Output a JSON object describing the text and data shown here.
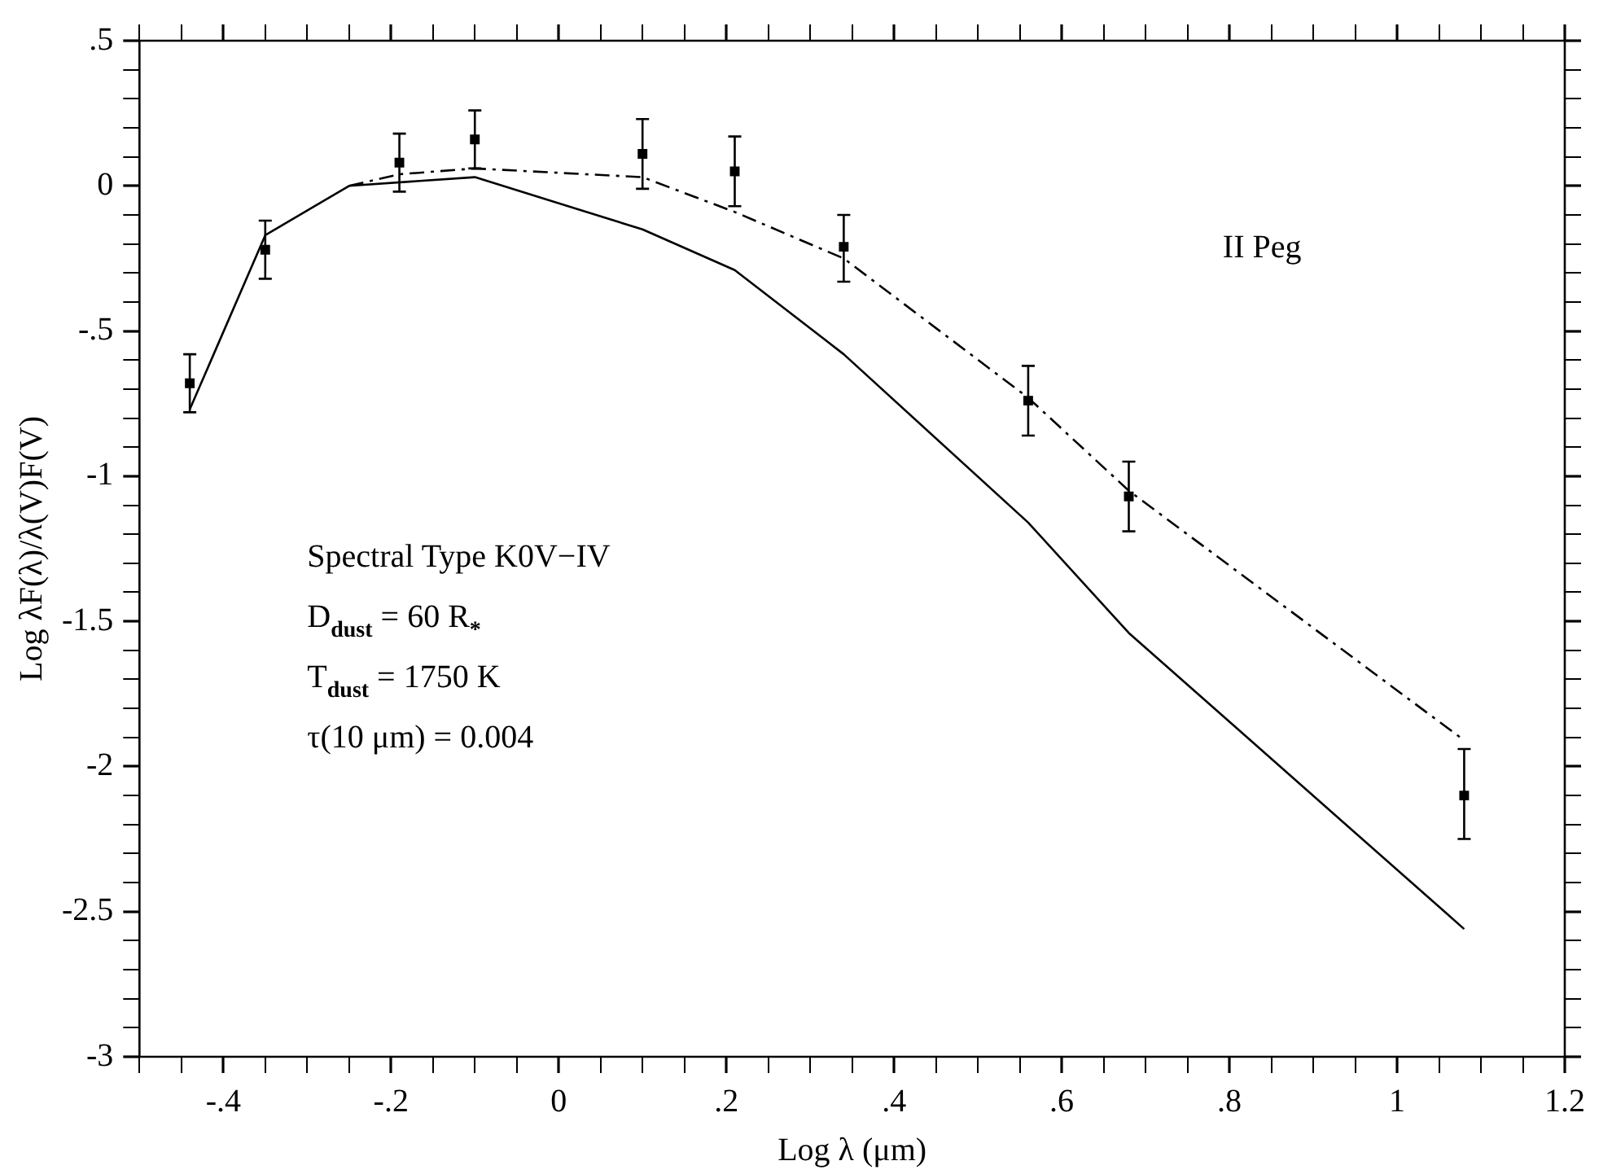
{
  "chart_data": {
    "type": "scatter",
    "xlabel": "Log λ (μm)",
    "ylabel": "Log λF(λ)/λ(V)F(V)",
    "annotations": [
      "II Peg",
      "Spectral Type K0V−IV",
      "D$_{dust}$ = 60 R$_{*}$",
      "T$_{dust}$ = 1750 K",
      "τ(10 μm) = 0.004"
    ],
    "x": [
      -0.44,
      -0.35,
      -0.19,
      -0.1,
      0.1,
      0.21,
      0.34,
      0.56,
      0.68,
      1.08
    ],
    "series": [
      {
        "color": "#000000",
        "marker": "square",
        "values": [
          -0.68,
          -0.22,
          0.08,
          0.16,
          0.11,
          0.05,
          -0.21,
          -0.74,
          -1.07,
          -2.1
        ],
        "errors": [
          [
            -0.78,
            -0.58
          ],
          [
            -0.32,
            -0.12
          ],
          [
            -0.02,
            0.18
          ],
          [
            0.06,
            0.26
          ],
          [
            -0.01,
            0.23
          ],
          [
            -0.07,
            0.17
          ],
          [
            -0.33,
            -0.1
          ],
          [
            -0.86,
            -0.62
          ],
          [
            -1.19,
            -0.95
          ],
          [
            -2.25,
            -1.94
          ]
        ]
      },
      {
        "type": "line",
        "color": "#000000",
        "line_style": "solid",
        "marker": "none",
        "x": [
          -0.44,
          -0.35,
          -0.25,
          -0.1,
          0.1,
          0.21,
          0.34,
          0.56,
          0.68,
          1.08
        ],
        "values": [
          -0.77,
          -0.17,
          0,
          0.03,
          -0.15,
          -0.29,
          -0.58,
          -1.16,
          -1.54,
          -2.56
        ]
      },
      {
        "type": "line",
        "color": "#000000",
        "line_style": "dashed",
        "marker": "none",
        "x": [
          -0.25,
          -0.19,
          -0.1,
          0.1,
          0.21,
          0.34,
          0.56,
          0.68,
          1.08
        ],
        "values": [
          0,
          0.04,
          0.06,
          0.03,
          -0.09,
          -0.25,
          -0.73,
          -1.05,
          -1.91
        ]
      }
    ],
    "xlim": [
      -0.5,
      1.2
    ],
    "ylim": [
      -3,
      0.5
    ],
    "xticks": [
      {
        "value": -0.5,
        "label": null
      },
      {
        "value": -0.45,
        "label": null
      },
      {
        "value": -0.4,
        "label": "-.4"
      },
      {
        "value": -0.35,
        "label": null
      },
      {
        "value": -0.3,
        "label": null
      },
      {
        "value": -0.25,
        "label": null
      },
      {
        "value": -0.2,
        "label": "-.2"
      },
      {
        "value": -0.15,
        "label": null
      },
      {
        "value": -0.1,
        "label": null
      },
      {
        "value": -0.05,
        "label": null
      },
      0,
      {
        "value": 0.05,
        "label": null
      },
      {
        "value": 0.1,
        "label": null
      },
      {
        "value": 0.15,
        "label": null
      },
      {
        "value": 0.2,
        "label": ".2"
      },
      {
        "value": 0.25,
        "label": null
      },
      {
        "value": 0.3,
        "label": null
      },
      {
        "value": 0.35,
        "label": null
      },
      {
        "value": 0.4,
        "label": ".4"
      },
      {
        "value": 0.45,
        "label": null
      },
      {
        "value": 0.5,
        "label": null
      },
      {
        "value": 0.55,
        "label": null
      },
      {
        "value": 0.6,
        "label": ".6"
      },
      {
        "value": 0.65,
        "label": null
      },
      {
        "value": 0.7,
        "label": null
      },
      {
        "value": 0.75,
        "label": null
      },
      {
        "value": 0.8,
        "label": ".8"
      },
      {
        "value": 0.85,
        "label": null
      },
      {
        "value": 0.9,
        "label": null
      },
      {
        "value": 0.95,
        "label": null
      },
      1,
      {
        "value": 1.05,
        "label": null
      },
      {
        "value": 1.1,
        "label": null
      },
      {
        "value": 1.15,
        "label": null
      },
      1.2
    ],
    "yticks": [
      -3,
      {
        "value": -2.9,
        "label": null
      },
      {
        "value": -2.8,
        "label": null
      },
      {
        "value": -2.7,
        "label": null
      },
      {
        "value": -2.6,
        "label": null
      },
      -2.5,
      {
        "value": -2.4,
        "label": null
      },
      {
        "value": -2.3,
        "label": null
      },
      {
        "value": -2.2,
        "label": null
      },
      {
        "value": -2.1,
        "label": null
      },
      -2,
      {
        "value": -1.9,
        "label": null
      },
      {
        "value": -1.8,
        "label": null
      },
      {
        "value": -1.7,
        "label": null
      },
      {
        "value": -1.6,
        "label": null
      },
      -1.5,
      {
        "value": -1.4,
        "label": null
      },
      {
        "value": -1.3,
        "label": null
      },
      {
        "value": -1.2,
        "label": null
      },
      {
        "value": -1.1,
        "label": null
      },
      -1,
      {
        "value": -0.9,
        "label": null
      },
      {
        "value": -0.8,
        "label": null
      },
      {
        "value": -0.7,
        "label": null
      },
      {
        "value": -0.6,
        "label": null
      },
      {
        "value": -0.5,
        "label": "-.5"
      },
      {
        "value": -0.4,
        "label": null
      },
      {
        "value": -0.3,
        "label": null
      },
      {
        "value": -0.2,
        "label": null
      },
      {
        "value": -0.1,
        "label": null
      },
      0,
      {
        "value": 0.1,
        "label": null
      },
      {
        "value": 0.2,
        "label": null
      },
      {
        "value": 0.3,
        "label": null
      },
      {
        "value": 0.4,
        "label": null
      },
      {
        "value": 0.5,
        "label": ".5"
      }
    ],
    "grid": false,
    "legend": false
  }
}
